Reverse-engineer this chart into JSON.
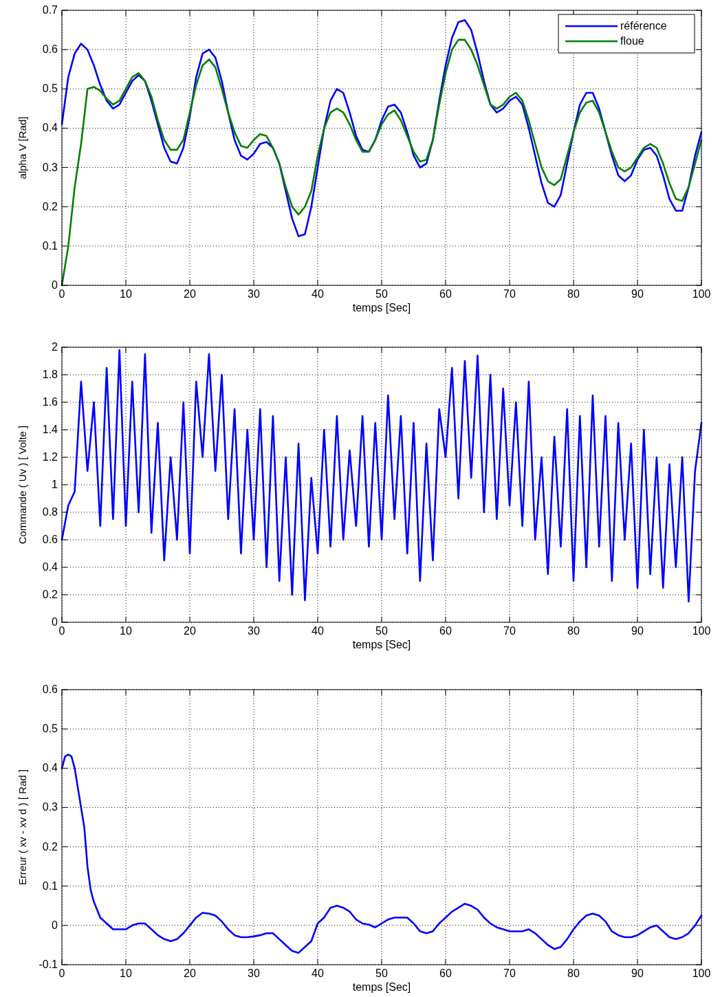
{
  "chart_data": [
    {
      "type": "line",
      "xlabel": "temps [Sec]",
      "ylabel": "alpha V [Rad]",
      "xlim": [
        0,
        100
      ],
      "xticks": [
        0,
        10,
        20,
        30,
        40,
        50,
        60,
        70,
        80,
        90,
        100
      ],
      "ylim": [
        0,
        0.7
      ],
      "yticks": [
        0,
        0.1,
        0.2,
        0.3,
        0.4,
        0.5,
        0.6,
        0.7
      ],
      "grid": true,
      "legend": "top right",
      "x": [
        0,
        1,
        2,
        3,
        4,
        5,
        6,
        7,
        8,
        9,
        10,
        11,
        12,
        13,
        14,
        15,
        16,
        17,
        18,
        19,
        20,
        21,
        22,
        23,
        24,
        25,
        26,
        27,
        28,
        29,
        30,
        31,
        32,
        33,
        34,
        35,
        36,
        37,
        38,
        39,
        40,
        41,
        42,
        43,
        44,
        45,
        46,
        47,
        48,
        49,
        50,
        51,
        52,
        53,
        54,
        55,
        56,
        57,
        58,
        59,
        60,
        61,
        62,
        63,
        64,
        65,
        66,
        67,
        68,
        69,
        70,
        71,
        72,
        73,
        74,
        75,
        76,
        77,
        78,
        79,
        80,
        81,
        82,
        83,
        84,
        85,
        86,
        87,
        88,
        89,
        90,
        91,
        92,
        93,
        94,
        95,
        96,
        97,
        98,
        99,
        100
      ],
      "series": [
        {
          "name": "référence",
          "color": "#0000ff",
          "values": [
            0.41,
            0.53,
            0.59,
            0.615,
            0.6,
            0.56,
            0.51,
            0.47,
            0.45,
            0.46,
            0.49,
            0.52,
            0.535,
            0.52,
            0.47,
            0.41,
            0.35,
            0.315,
            0.31,
            0.35,
            0.43,
            0.53,
            0.59,
            0.6,
            0.58,
            0.52,
            0.44,
            0.37,
            0.33,
            0.32,
            0.335,
            0.36,
            0.365,
            0.35,
            0.31,
            0.24,
            0.17,
            0.125,
            0.13,
            0.2,
            0.3,
            0.4,
            0.47,
            0.5,
            0.49,
            0.44,
            0.38,
            0.345,
            0.34,
            0.37,
            0.42,
            0.455,
            0.46,
            0.44,
            0.39,
            0.33,
            0.3,
            0.31,
            0.37,
            0.47,
            0.56,
            0.63,
            0.67,
            0.675,
            0.65,
            0.59,
            0.52,
            0.46,
            0.44,
            0.45,
            0.47,
            0.48,
            0.46,
            0.4,
            0.33,
            0.26,
            0.21,
            0.2,
            0.23,
            0.31,
            0.39,
            0.46,
            0.49,
            0.49,
            0.45,
            0.39,
            0.33,
            0.28,
            0.265,
            0.28,
            0.32,
            0.345,
            0.35,
            0.33,
            0.28,
            0.22,
            0.19,
            0.19,
            0.25,
            0.33,
            0.39
          ]
        },
        {
          "name": "floue",
          "color": "#007f00",
          "values": [
            0,
            0.1,
            0.25,
            0.36,
            0.5,
            0.505,
            0.495,
            0.475,
            0.46,
            0.47,
            0.5,
            0.53,
            0.54,
            0.52,
            0.48,
            0.42,
            0.37,
            0.345,
            0.345,
            0.37,
            0.44,
            0.51,
            0.56,
            0.575,
            0.555,
            0.5,
            0.44,
            0.39,
            0.355,
            0.35,
            0.37,
            0.385,
            0.38,
            0.35,
            0.31,
            0.25,
            0.2,
            0.18,
            0.2,
            0.24,
            0.33,
            0.4,
            0.44,
            0.45,
            0.44,
            0.41,
            0.37,
            0.34,
            0.34,
            0.37,
            0.41,
            0.435,
            0.445,
            0.42,
            0.38,
            0.34,
            0.315,
            0.32,
            0.37,
            0.46,
            0.54,
            0.6,
            0.625,
            0.625,
            0.6,
            0.56,
            0.51,
            0.46,
            0.45,
            0.46,
            0.48,
            0.49,
            0.47,
            0.42,
            0.36,
            0.3,
            0.265,
            0.255,
            0.27,
            0.33,
            0.39,
            0.44,
            0.465,
            0.47,
            0.44,
            0.39,
            0.34,
            0.3,
            0.29,
            0.3,
            0.325,
            0.35,
            0.36,
            0.35,
            0.31,
            0.26,
            0.22,
            0.215,
            0.25,
            0.31,
            0.37
          ]
        }
      ]
    },
    {
      "type": "line",
      "xlabel": "temps [Sec]",
      "ylabel": "Commande ( Uv ) [ Volte ]",
      "xlim": [
        0,
        100
      ],
      "xticks": [
        0,
        10,
        20,
        30,
        40,
        50,
        60,
        70,
        80,
        90,
        100
      ],
      "ylim": [
        0,
        2
      ],
      "yticks": [
        0,
        0.2,
        0.4,
        0.6,
        0.8,
        1,
        1.2,
        1.4,
        1.6,
        1.8,
        2
      ],
      "grid": true,
      "x": [
        0,
        1,
        2,
        3,
        4,
        5,
        6,
        7,
        8,
        9,
        10,
        11,
        12,
        13,
        14,
        15,
        16,
        17,
        18,
        19,
        20,
        21,
        22,
        23,
        24,
        25,
        26,
        27,
        28,
        29,
        30,
        31,
        32,
        33,
        34,
        35,
        36,
        37,
        38,
        39,
        40,
        41,
        42,
        43,
        44,
        45,
        46,
        47,
        48,
        49,
        50,
        51,
        52,
        53,
        54,
        55,
        56,
        57,
        58,
        59,
        60,
        61,
        62,
        63,
        64,
        65,
        66,
        67,
        68,
        69,
        70,
        71,
        72,
        73,
        74,
        75,
        76,
        77,
        78,
        79,
        80,
        81,
        82,
        83,
        84,
        85,
        86,
        87,
        88,
        89,
        90,
        91,
        92,
        93,
        94,
        95,
        96,
        97,
        98,
        99,
        100
      ],
      "series": [
        {
          "color": "#0000ff",
          "values": [
            0.6,
            0.85,
            0.95,
            1.75,
            1.1,
            1.6,
            0.7,
            1.85,
            0.75,
            1.98,
            0.7,
            1.75,
            0.8,
            1.95,
            0.65,
            1.45,
            0.45,
            1.2,
            0.6,
            1.6,
            0.5,
            1.75,
            1.2,
            1.95,
            1.1,
            1.8,
            0.75,
            1.55,
            0.5,
            1.4,
            0.6,
            1.55,
            0.4,
            1.5,
            0.3,
            1.2,
            0.2,
            1.3,
            0.16,
            1.05,
            0.5,
            1.4,
            0.55,
            1.5,
            0.6,
            1.25,
            0.7,
            1.5,
            0.55,
            1.45,
            0.6,
            1.65,
            0.75,
            1.5,
            0.5,
            1.45,
            0.3,
            1.3,
            0.45,
            1.55,
            1.2,
            1.85,
            0.9,
            1.9,
            1.05,
            1.94,
            0.8,
            1.8,
            0.75,
            1.7,
            0.85,
            1.6,
            0.7,
            1.75,
            0.6,
            1.2,
            0.35,
            1.35,
            0.55,
            1.55,
            0.3,
            1.5,
            0.4,
            1.65,
            0.55,
            1.5,
            0.3,
            1.45,
            0.6,
            1.3,
            0.25,
            1.4,
            0.35,
            1.2,
            0.25,
            1.15,
            0.4,
            1.2,
            0.15,
            1.1,
            1.45
          ]
        }
      ]
    },
    {
      "type": "line",
      "xlabel": "temps [Sec]",
      "ylabel": "Erreur ( xv - xv d ) [ Rad ]",
      "xlim": [
        0,
        100
      ],
      "xticks": [
        0,
        10,
        20,
        30,
        40,
        50,
        60,
        70,
        80,
        90,
        100
      ],
      "ylim": [
        -0.1,
        0.6
      ],
      "yticks": [
        -0.1,
        0,
        0.1,
        0.2,
        0.3,
        0.4,
        0.5,
        0.6
      ],
      "grid": true,
      "x": [
        0,
        0.5,
        1,
        1.5,
        2,
        2.5,
        3,
        3.5,
        4,
        4.5,
        5,
        6,
        7,
        8,
        9,
        10,
        11,
        12,
        13,
        14,
        15,
        16,
        17,
        18,
        19,
        20,
        21,
        22,
        23,
        24,
        25,
        26,
        27,
        28,
        29,
        30,
        31,
        32,
        33,
        34,
        35,
        36,
        37,
        38,
        39,
        40,
        41,
        42,
        43,
        44,
        45,
        46,
        47,
        48,
        49,
        50,
        51,
        52,
        53,
        54,
        55,
        56,
        57,
        58,
        59,
        60,
        61,
        62,
        63,
        64,
        65,
        66,
        67,
        68,
        69,
        70,
        71,
        72,
        73,
        74,
        75,
        76,
        77,
        78,
        79,
        80,
        81,
        82,
        83,
        84,
        85,
        86,
        87,
        88,
        89,
        90,
        91,
        92,
        93,
        94,
        95,
        96,
        97,
        98,
        99,
        100
      ],
      "series": [
        {
          "color": "#0000ff",
          "values": [
            0.4,
            0.43,
            0.435,
            0.43,
            0.4,
            0.35,
            0.3,
            0.25,
            0.15,
            0.09,
            0.06,
            0.02,
            0.005,
            -0.01,
            -0.01,
            -0.01,
            0,
            0.005,
            0.005,
            -0.01,
            -0.025,
            -0.035,
            -0.04,
            -0.035,
            -0.02,
            0,
            0.02,
            0.032,
            0.03,
            0.025,
            0.01,
            -0.01,
            -0.025,
            -0.03,
            -0.03,
            -0.028,
            -0.025,
            -0.02,
            -0.02,
            -0.035,
            -0.05,
            -0.065,
            -0.07,
            -0.055,
            -0.04,
            0.005,
            0.02,
            0.045,
            0.05,
            0.045,
            0.035,
            0.015,
            0.005,
            0.002,
            -0.005,
            0.005,
            0.015,
            0.02,
            0.02,
            0.02,
            0.005,
            -0.015,
            -0.02,
            -0.015,
            0.005,
            0.02,
            0.035,
            0.045,
            0.055,
            0.05,
            0.04,
            0.02,
            0.005,
            -0.005,
            -0.01,
            -0.015,
            -0.015,
            -0.015,
            -0.01,
            -0.02,
            -0.035,
            -0.05,
            -0.06,
            -0.055,
            -0.035,
            -0.01,
            0.01,
            0.025,
            0.03,
            0.025,
            0.01,
            -0.015,
            -0.025,
            -0.03,
            -0.03,
            -0.025,
            -0.015,
            -0.005,
            0,
            -0.015,
            -0.03,
            -0.035,
            -0.03,
            -0.02,
            0,
            0.025
          ]
        }
      ]
    }
  ]
}
